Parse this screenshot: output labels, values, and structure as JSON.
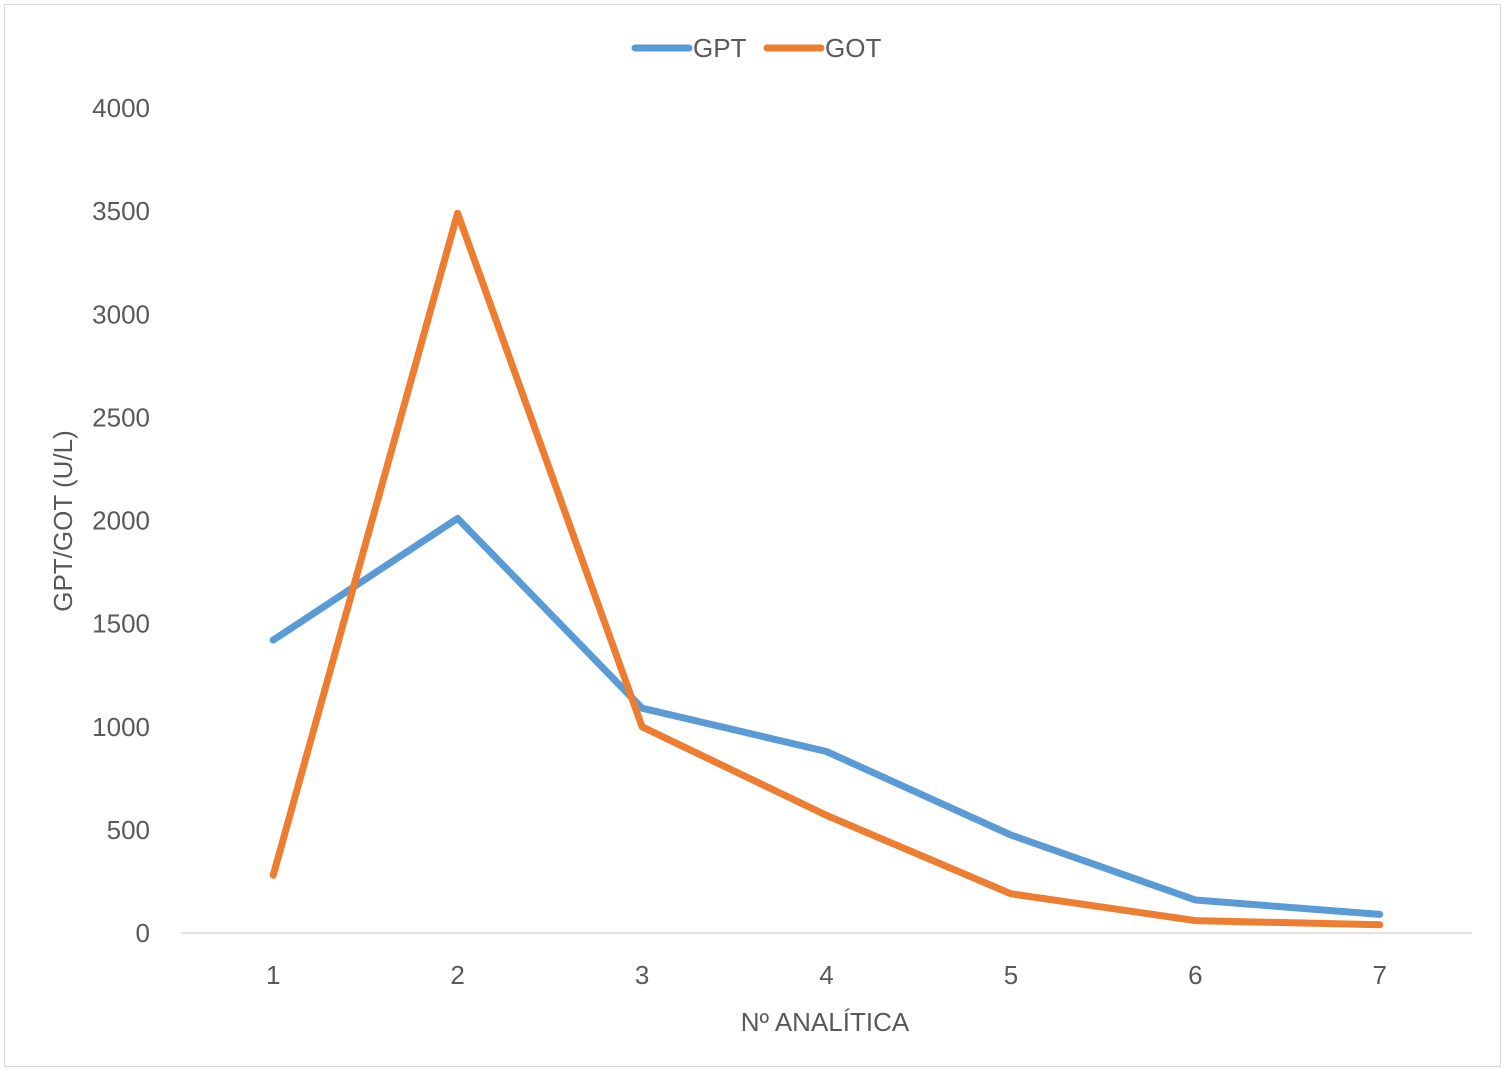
{
  "chart_data": {
    "type": "line",
    "title": "",
    "xlabel": "Nº ANALÍTICA",
    "ylabel": "GPT/GOT (U/L)",
    "categories": [
      "1",
      "2",
      "3",
      "4",
      "5",
      "6",
      "7"
    ],
    "y_ticks": [
      "0",
      "500",
      "1000",
      "1500",
      "2000",
      "2500",
      "3000",
      "3500",
      "4000"
    ],
    "ylim": [
      0,
      4000
    ],
    "grid": false,
    "legend_position": "top",
    "series": [
      {
        "name": "GPT",
        "color": "#5b9bd5",
        "values": [
          1420,
          2010,
          1090,
          880,
          475,
          160,
          90
        ]
      },
      {
        "name": "GOT",
        "color": "#ed7d31",
        "values": [
          280,
          3490,
          1000,
          570,
          190,
          60,
          40
        ]
      }
    ]
  }
}
